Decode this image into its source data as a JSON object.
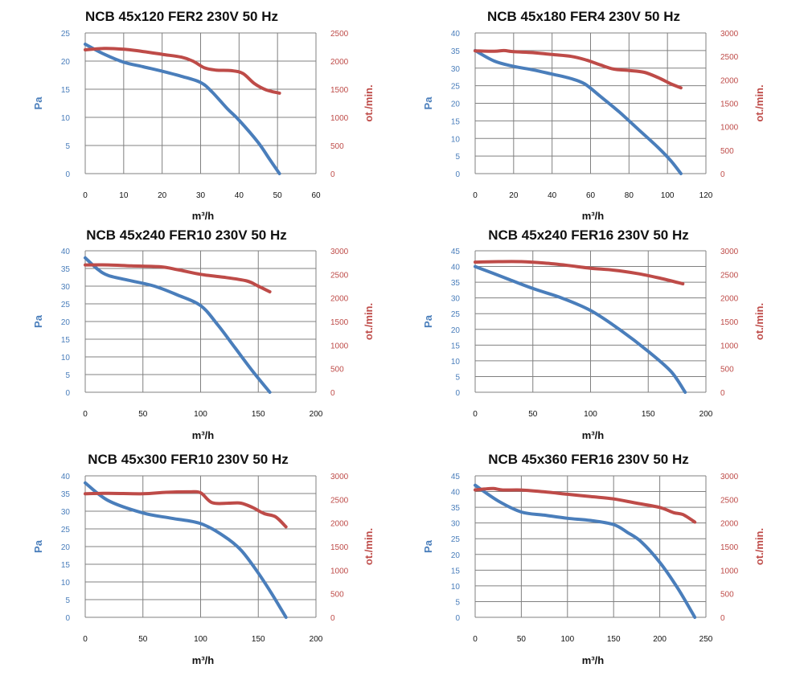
{
  "colors": {
    "pressure": "#4a7ebb",
    "speed": "#be4b48",
    "grid": "#808080",
    "text": "#111111"
  },
  "chart_data": [
    {
      "type": "line",
      "title": "NCB 45x120 FER2 230V 50 Hz",
      "xlabel": "m³/h",
      "ylabel": "Pa",
      "y2label": "ot./min.",
      "xlim": [
        0,
        60
      ],
      "xticks": [
        0,
        10,
        20,
        30,
        40,
        50,
        60
      ],
      "ylim": [
        0,
        25
      ],
      "yticks": [
        0,
        5,
        10,
        15,
        20,
        25
      ],
      "y2lim": [
        0,
        2500
      ],
      "y2ticks": [
        0,
        500,
        1000,
        1500,
        2000,
        2500
      ],
      "grid": true,
      "series": [
        {
          "axis": "left",
          "points": [
            [
              0,
              23
            ],
            [
              5,
              21.2
            ],
            [
              10,
              19.8
            ],
            [
              15,
              19
            ],
            [
              20,
              18.2
            ],
            [
              25,
              17.3
            ],
            [
              30,
              16.2
            ],
            [
              33,
              14.5
            ],
            [
              37,
              11.5
            ],
            [
              40,
              9.5
            ],
            [
              45,
              5.5
            ],
            [
              48,
              2.5
            ],
            [
              50.5,
              0
            ]
          ]
        },
        {
          "axis": "right",
          "points": [
            [
              0,
              2200
            ],
            [
              5,
              2225
            ],
            [
              10,
              2210
            ],
            [
              15,
              2170
            ],
            [
              20,
              2120
            ],
            [
              25,
              2070
            ],
            [
              28,
              2000
            ],
            [
              31,
              1880
            ],
            [
              34,
              1840
            ],
            [
              38,
              1830
            ],
            [
              41,
              1780
            ],
            [
              44,
              1600
            ],
            [
              47,
              1490
            ],
            [
              50.5,
              1430
            ]
          ]
        }
      ]
    },
    {
      "type": "line",
      "title": "NCB 45x180 FER4 230V 50 Hz",
      "xlabel": "m³/h",
      "ylabel": "Pa",
      "y2label": "ot./min.",
      "xlim": [
        0,
        120
      ],
      "xticks": [
        0,
        20,
        40,
        60,
        80,
        100,
        120
      ],
      "ylim": [
        0,
        40
      ],
      "yticks": [
        0,
        5,
        10,
        15,
        20,
        25,
        30,
        35,
        40
      ],
      "y2lim": [
        0,
        3000
      ],
      "y2ticks": [
        0,
        500,
        1000,
        1500,
        2000,
        2500,
        3000
      ],
      "grid": true,
      "series": [
        {
          "axis": "left",
          "points": [
            [
              0,
              35
            ],
            [
              10,
              32
            ],
            [
              20,
              30.5
            ],
            [
              30,
              29.5
            ],
            [
              40,
              28.3
            ],
            [
              50,
              27
            ],
            [
              57,
              25.5
            ],
            [
              65,
              22
            ],
            [
              75,
              17.5
            ],
            [
              85,
              12.5
            ],
            [
              95,
              7.5
            ],
            [
              102,
              3.5
            ],
            [
              107,
              0
            ]
          ]
        },
        {
          "axis": "right",
          "points": [
            [
              0,
              2620
            ],
            [
              10,
              2610
            ],
            [
              15,
              2625
            ],
            [
              20,
              2600
            ],
            [
              30,
              2580
            ],
            [
              40,
              2540
            ],
            [
              50,
              2500
            ],
            [
              58,
              2420
            ],
            [
              65,
              2320
            ],
            [
              72,
              2230
            ],
            [
              80,
              2200
            ],
            [
              88,
              2160
            ],
            [
              95,
              2050
            ],
            [
              102,
              1910
            ],
            [
              107,
              1830
            ]
          ]
        }
      ]
    },
    {
      "type": "line",
      "title": "NCB 45x240 FER10 230V 50 Hz",
      "xlabel": "m³/h",
      "ylabel": "Pa",
      "y2label": "ot./min.",
      "xlim": [
        0,
        200
      ],
      "xticks": [
        0,
        50,
        100,
        150,
        200
      ],
      "ylim": [
        0,
        40
      ],
      "yticks": [
        0,
        5,
        10,
        15,
        20,
        25,
        30,
        35,
        40
      ],
      "y2lim": [
        0,
        3000
      ],
      "y2ticks": [
        0,
        500,
        1000,
        1500,
        2000,
        2500,
        3000
      ],
      "grid": true,
      "series": [
        {
          "axis": "left",
          "points": [
            [
              0,
              38
            ],
            [
              10,
              35
            ],
            [
              20,
              33
            ],
            [
              40,
              31.5
            ],
            [
              60,
              30
            ],
            [
              80,
              27.5
            ],
            [
              100,
              24.5
            ],
            [
              115,
              19
            ],
            [
              130,
              12.5
            ],
            [
              145,
              6
            ],
            [
              160,
              0
            ]
          ]
        },
        {
          "axis": "right",
          "points": [
            [
              0,
              2700
            ],
            [
              20,
              2700
            ],
            [
              40,
              2680
            ],
            [
              65,
              2660
            ],
            [
              80,
              2600
            ],
            [
              100,
              2500
            ],
            [
              120,
              2440
            ],
            [
              140,
              2360
            ],
            [
              150,
              2250
            ],
            [
              160,
              2130
            ]
          ]
        }
      ]
    },
    {
      "type": "line",
      "title": "NCB 45x240 FER16 230V 50 Hz",
      "xlabel": "m³/h",
      "ylabel": "Pa",
      "y2label": "ot./min.",
      "xlim": [
        0,
        200
      ],
      "xticks": [
        0,
        50,
        100,
        150,
        200
      ],
      "ylim": [
        0,
        45
      ],
      "yticks": [
        0,
        5,
        10,
        15,
        20,
        25,
        30,
        35,
        40,
        45
      ],
      "y2lim": [
        0,
        3000
      ],
      "y2ticks": [
        0,
        500,
        1000,
        1500,
        2000,
        2500,
        3000
      ],
      "grid": true,
      "series": [
        {
          "axis": "left",
          "points": [
            [
              0,
              40
            ],
            [
              25,
              36.5
            ],
            [
              50,
              33
            ],
            [
              75,
              30
            ],
            [
              100,
              26
            ],
            [
              125,
              20
            ],
            [
              150,
              13
            ],
            [
              170,
              6.5
            ],
            [
              182,
              0
            ]
          ]
        },
        {
          "axis": "right",
          "points": [
            [
              0,
              2760
            ],
            [
              20,
              2770
            ],
            [
              40,
              2770
            ],
            [
              60,
              2740
            ],
            [
              80,
              2690
            ],
            [
              100,
              2630
            ],
            [
              120,
              2590
            ],
            [
              140,
              2520
            ],
            [
              160,
              2420
            ],
            [
              180,
              2300
            ]
          ]
        }
      ]
    },
    {
      "type": "line",
      "title": "NCB 45x300 FER10 230V 50 Hz",
      "xlabel": "m³/h",
      "ylabel": "Pa",
      "y2label": "ot./min.",
      "xlim": [
        0,
        200
      ],
      "xticks": [
        0,
        50,
        100,
        150,
        200
      ],
      "ylim": [
        0,
        40
      ],
      "yticks": [
        0,
        5,
        10,
        15,
        20,
        25,
        30,
        35,
        40
      ],
      "y2lim": [
        0,
        3000
      ],
      "y2ticks": [
        0,
        500,
        1000,
        1500,
        2000,
        2500,
        3000
      ],
      "grid": true,
      "series": [
        {
          "axis": "left",
          "points": [
            [
              0,
              38
            ],
            [
              20,
              33
            ],
            [
              50,
              29.5
            ],
            [
              75,
              28
            ],
            [
              100,
              26.5
            ],
            [
              120,
              23
            ],
            [
              135,
              19
            ],
            [
              150,
              12.5
            ],
            [
              162,
              6.5
            ],
            [
              174,
              0
            ]
          ]
        },
        {
          "axis": "right",
          "points": [
            [
              0,
              2620
            ],
            [
              20,
              2630
            ],
            [
              50,
              2620
            ],
            [
              70,
              2650
            ],
            [
              90,
              2660
            ],
            [
              100,
              2640
            ],
            [
              110,
              2430
            ],
            [
              125,
              2420
            ],
            [
              135,
              2420
            ],
            [
              145,
              2330
            ],
            [
              155,
              2200
            ],
            [
              165,
              2130
            ],
            [
              174,
              1920
            ]
          ]
        }
      ]
    },
    {
      "type": "line",
      "title": "NCB 45x360 FER16 230V 50 Hz",
      "xlabel": "m³/h",
      "ylabel": "Pa",
      "y2label": "ot./min.",
      "xlim": [
        0,
        250
      ],
      "xticks": [
        0,
        50,
        100,
        150,
        200,
        250
      ],
      "ylim": [
        0,
        45
      ],
      "yticks": [
        0,
        5,
        10,
        15,
        20,
        25,
        30,
        35,
        40,
        45
      ],
      "y2lim": [
        0,
        3000
      ],
      "y2ticks": [
        0,
        500,
        1000,
        1500,
        2000,
        2500,
        3000
      ],
      "grid": true,
      "series": [
        {
          "axis": "left",
          "points": [
            [
              0,
              42
            ],
            [
              25,
              37
            ],
            [
              50,
              33.5
            ],
            [
              75,
              32.5
            ],
            [
              100,
              31.5
            ],
            [
              125,
              30.8
            ],
            [
              150,
              29.5
            ],
            [
              165,
              27
            ],
            [
              180,
              24
            ],
            [
              200,
              17.5
            ],
            [
              220,
              9
            ],
            [
              238,
              0
            ]
          ]
        },
        {
          "axis": "right",
          "points": [
            [
              0,
              2700
            ],
            [
              10,
              2720
            ],
            [
              20,
              2730
            ],
            [
              30,
              2700
            ],
            [
              50,
              2700
            ],
            [
              75,
              2660
            ],
            [
              100,
              2610
            ],
            [
              125,
              2560
            ],
            [
              150,
              2510
            ],
            [
              175,
              2420
            ],
            [
              200,
              2330
            ],
            [
              215,
              2220
            ],
            [
              225,
              2180
            ],
            [
              238,
              2020
            ]
          ]
        }
      ]
    }
  ]
}
